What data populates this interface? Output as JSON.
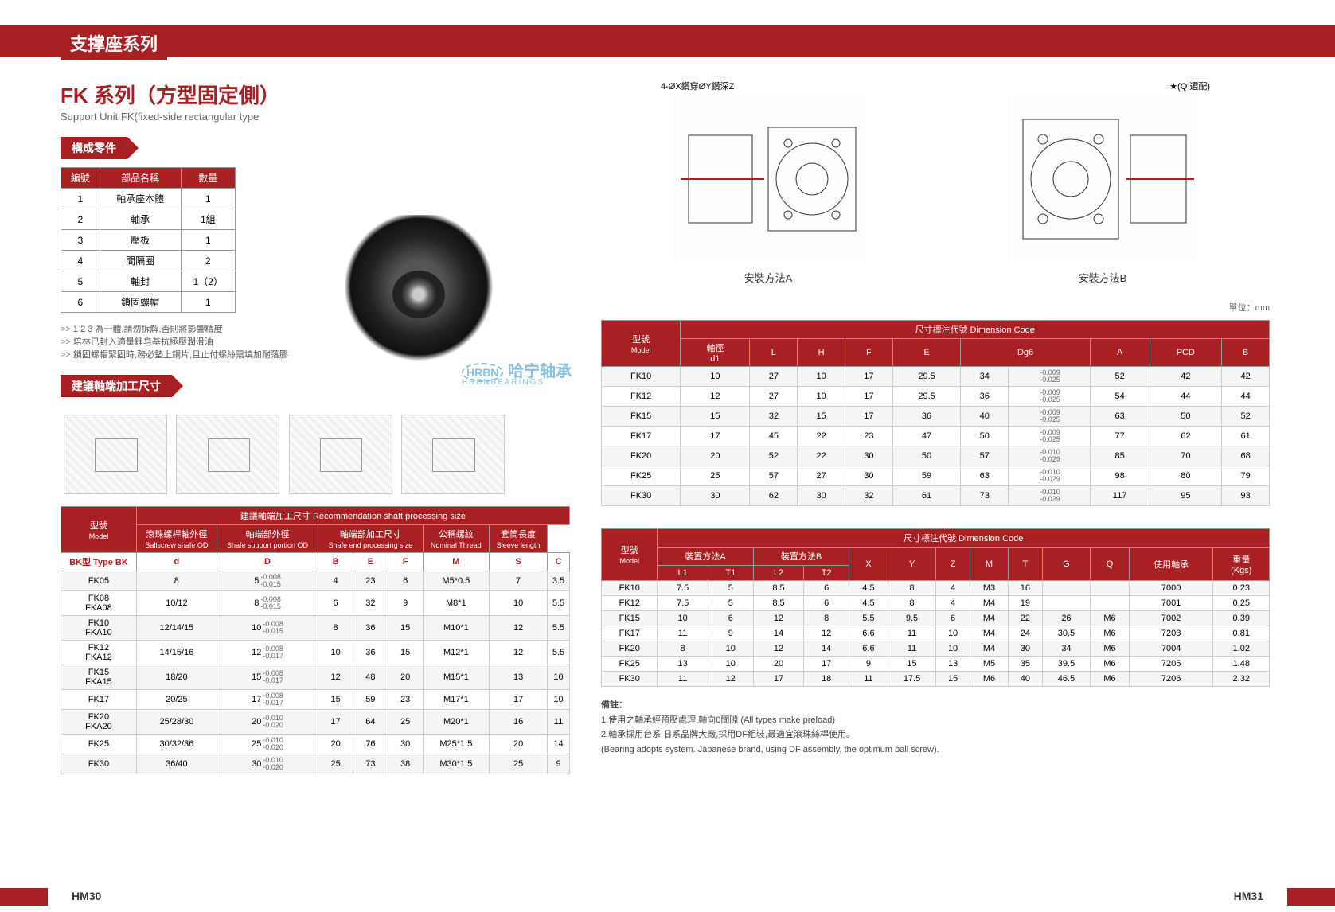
{
  "header": {
    "title": "支撑座系列"
  },
  "series": {
    "title": "FK 系列（方型固定側）",
    "subtitle": "Support Unit FK(fixed-side rectangular type"
  },
  "sections": {
    "parts": "構成零件",
    "shaft": "建議軸端加工尺寸"
  },
  "parts_table": {
    "headers": [
      "編號",
      "部品名稱",
      "數量"
    ],
    "rows": [
      [
        "1",
        "軸承座本體",
        "1"
      ],
      [
        "2",
        "軸承",
        "1組"
      ],
      [
        "3",
        "壓板",
        "1"
      ],
      [
        "4",
        "間隔圈",
        "2"
      ],
      [
        "5",
        "軸封",
        "1（2）"
      ],
      [
        "6",
        "鎖固螺帽",
        "1"
      ]
    ]
  },
  "notes": [
    "1 2 3 為一體,請勿拆解,否則將影響精度",
    "培林已封入適量鋰皂基抗極壓潤滑油",
    "鎖固螺帽緊固時,務必墊上銅片,且止付螺絲需填加耐落膠"
  ],
  "diagram_labels": {
    "top_left": "4-ØX鑽穿ØY鑽深Z",
    "q_option": "★(Q 選配)",
    "method_a": "安裝方法A",
    "method_b": "安裝方法B"
  },
  "watermark": {
    "main": "哈宁轴承",
    "sub": "HRBNBEARINGS",
    "prefix": "HRBN"
  },
  "unit": "單位：mm",
  "shaft_table": {
    "title": "建議軸端加工尺寸  Recommendation shaft processing size",
    "group_headers": [
      "型號",
      "滾珠螺桿軸外徑",
      "軸端部外徑",
      "軸端部加工尺寸",
      "公稱螺紋",
      "套筒長度"
    ],
    "group_sub": [
      "Model",
      "Ballscrew shafe OD",
      "Shafe support portion OD",
      "Shafe end processing size",
      "Nominal Thread",
      "Sleeve length"
    ],
    "col_headers": [
      "BK型 Type BK",
      "d",
      "D",
      "B",
      "E",
      "F",
      "M",
      "S",
      "C"
    ],
    "rows": [
      {
        "m": "FK05",
        "d": "8",
        "D": "5",
        "tol": "-0.008\n-0.015",
        "B": "4",
        "E": "23",
        "F": "6",
        "M": "M5*0.5",
        "S": "7",
        "C": "3.5"
      },
      {
        "m": "FK08\nFKA08",
        "d": "10/12",
        "D": "8",
        "tol": "-0.008\n-0.015",
        "B": "6",
        "E": "32",
        "F": "9",
        "M": "M8*1",
        "S": "10",
        "C": "5.5"
      },
      {
        "m": "FK10\nFKA10",
        "d": "12/14/15",
        "D": "10",
        "tol": "-0.008\n-0.015",
        "B": "8",
        "E": "36",
        "F": "15",
        "M": "M10*1",
        "S": "12",
        "C": "5.5"
      },
      {
        "m": "FK12\nFKA12",
        "d": "14/15/16",
        "D": "12",
        "tol": "-0.008\n-0.017",
        "B": "10",
        "E": "36",
        "F": "15",
        "M": "M12*1",
        "S": "12",
        "C": "5.5"
      },
      {
        "m": "FK15\nFKA15",
        "d": "18/20",
        "D": "15",
        "tol": "-0.008\n-0.017",
        "B": "12",
        "E": "48",
        "F": "20",
        "M": "M15*1",
        "S": "13",
        "C": "10"
      },
      {
        "m": "FK17",
        "d": "20/25",
        "D": "17",
        "tol": "-0.008\n-0.017",
        "B": "15",
        "E": "59",
        "F": "23",
        "M": "M17*1",
        "S": "17",
        "C": "10"
      },
      {
        "m": "FK20\nFKA20",
        "d": "25/28/30",
        "D": "20",
        "tol": "-0.010\n-0.020",
        "B": "17",
        "E": "64",
        "F": "25",
        "M": "M20*1",
        "S": "16",
        "C": "11"
      },
      {
        "m": "FK25",
        "d": "30/32/36",
        "D": "25",
        "tol": "-0.010\n-0.020",
        "B": "20",
        "E": "76",
        "F": "30",
        "M": "M25*1.5",
        "S": "20",
        "C": "14"
      },
      {
        "m": "FK30",
        "d": "36/40",
        "D": "30",
        "tol": "-0.010\n-0.020",
        "B": "25",
        "E": "73",
        "F": "38",
        "M": "M30*1.5",
        "S": "25",
        "C": "9"
      }
    ]
  },
  "dim_table1": {
    "title": "尺寸標注代號 Dimension Code",
    "model_header": "型號",
    "model_sub": "Model",
    "headers": [
      "軸徑\nd1",
      "L",
      "H",
      "F",
      "E",
      "Dg6",
      "",
      "A",
      "PCD",
      "B"
    ],
    "rows": [
      {
        "m": "FK10",
        "v": [
          "10",
          "27",
          "10",
          "17",
          "29.5",
          "34",
          "-0.009\n-0.025",
          "52",
          "42",
          "42"
        ]
      },
      {
        "m": "FK12",
        "v": [
          "12",
          "27",
          "10",
          "17",
          "29.5",
          "36",
          "-0.009\n-0.025",
          "54",
          "44",
          "44"
        ]
      },
      {
        "m": "FK15",
        "v": [
          "15",
          "32",
          "15",
          "17",
          "36",
          "40",
          "-0.009\n-0.025",
          "63",
          "50",
          "52"
        ]
      },
      {
        "m": "FK17",
        "v": [
          "17",
          "45",
          "22",
          "23",
          "47",
          "50",
          "-0.009\n-0.025",
          "77",
          "62",
          "61"
        ]
      },
      {
        "m": "FK20",
        "v": [
          "20",
          "52",
          "22",
          "30",
          "50",
          "57",
          "-0.010\n-0.029",
          "85",
          "70",
          "68"
        ]
      },
      {
        "m": "FK25",
        "v": [
          "25",
          "57",
          "27",
          "30",
          "59",
          "63",
          "-0.010\n-0.029",
          "98",
          "80",
          "79"
        ]
      },
      {
        "m": "FK30",
        "v": [
          "30",
          "62",
          "30",
          "32",
          "61",
          "73",
          "-0.010\n-0.029",
          "117",
          "95",
          "93"
        ]
      }
    ]
  },
  "dim_table2": {
    "title": "尺寸標注代號 Dimension Code",
    "model_header": "型號",
    "model_sub": "Model",
    "method_a": "裝置方法A",
    "method_b": "裝置方法B",
    "headers": [
      "L1",
      "T1",
      "L2",
      "T2",
      "X",
      "Y",
      "Z",
      "M",
      "T",
      "G",
      "Q",
      "使用軸承",
      "重量\n(Kgs)"
    ],
    "rows": [
      {
        "m": "FK10",
        "v": [
          "7.5",
          "5",
          "8.5",
          "6",
          "4.5",
          "8",
          "4",
          "M3",
          "16",
          "",
          "",
          "7000",
          "0.23"
        ]
      },
      {
        "m": "FK12",
        "v": [
          "7.5",
          "5",
          "8.5",
          "6",
          "4.5",
          "8",
          "4",
          "M4",
          "19",
          "",
          "",
          "7001",
          "0.25"
        ]
      },
      {
        "m": "FK15",
        "v": [
          "10",
          "6",
          "12",
          "8",
          "5.5",
          "9.5",
          "6",
          "M4",
          "22",
          "26",
          "M6",
          "7002",
          "0.39"
        ]
      },
      {
        "m": "FK17",
        "v": [
          "11",
          "9",
          "14",
          "12",
          "6.6",
          "11",
          "10",
          "M4",
          "24",
          "30.5",
          "M6",
          "7203",
          "0.81"
        ]
      },
      {
        "m": "FK20",
        "v": [
          "8",
          "10",
          "12",
          "14",
          "6.6",
          "11",
          "10",
          "M4",
          "30",
          "34",
          "M6",
          "7004",
          "1.02"
        ]
      },
      {
        "m": "FK25",
        "v": [
          "13",
          "10",
          "20",
          "17",
          "9",
          "15",
          "13",
          "M5",
          "35",
          "39.5",
          "M6",
          "7205",
          "1.48"
        ]
      },
      {
        "m": "FK30",
        "v": [
          "11",
          "12",
          "17",
          "18",
          "11",
          "17.5",
          "15",
          "M6",
          "40",
          "46.5",
          "M6",
          "7206",
          "2.32"
        ]
      }
    ]
  },
  "footer": {
    "title": "備註：",
    "lines": [
      "1.使用之軸承經預壓處理,軸向0間隙 (All types make preload)",
      "2.軸承採用台系.日系品牌大廠,採用DF組裝,最適宜滾珠絲桿使用。",
      "(Bearing adopts system. Japanese brand, using DF assembly, the optimum ball screw)."
    ]
  },
  "pages": {
    "left": "HM30",
    "right": "HM31"
  },
  "colors": {
    "brand": "#a81f24",
    "border": "#999999"
  }
}
